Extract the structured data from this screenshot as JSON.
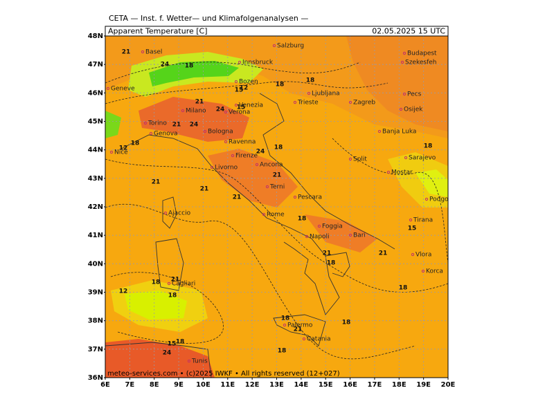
{
  "header": "CETA — Inst. f. Wetter— und Klimafolgenanalysen —",
  "title": "Apparent Temperature [C]",
  "timestamp": "02.05.2025 15 UTC",
  "footer": "meteo-services.com • (c)2025 IWKF • All rights reserved (12+027)",
  "lat_labels": [
    "48N",
    "47N",
    "46N",
    "45N",
    "44N",
    "43N",
    "42N",
    "41N",
    "40N",
    "39N",
    "38N",
    "37N",
    "36N"
  ],
  "lon_labels": [
    "6E",
    "7E",
    "8E",
    "9E",
    "10E",
    "11E",
    "12E",
    "13E",
    "14E",
    "15E",
    "16E",
    "17E",
    "18E",
    "19E",
    "20E"
  ],
  "cities": [
    "Basel",
    "Innsbruck",
    "Salzburg",
    "Budapest",
    "Szekesfeh",
    "Bozen",
    "Milano",
    "Verona",
    "Venezia",
    "Trieste",
    "Ljubljana",
    "Zagreb",
    "Pecs",
    "Osijek",
    "Torino",
    "Genova",
    "Bologna",
    "Ravenna",
    "Firenze",
    "Ancona",
    "Livorno",
    "Split",
    "Banja Luka",
    "Sarajevo",
    "Mostar",
    "Podgorica",
    "Tirana",
    "Vlora",
    "Korca",
    "Terni",
    "Pescara",
    "Rome",
    "Ajaccio",
    "Foggia",
    "Bari",
    "Napoli",
    "Cagliari",
    "Palermo",
    "Catania",
    "Tunis",
    "Nice",
    "Geneve"
  ],
  "contour_labels": [
    21,
    24,
    18,
    15,
    18,
    18,
    12,
    21,
    24,
    21,
    24,
    15,
    12,
    18,
    24,
    18,
    21,
    21,
    21,
    18,
    21,
    18,
    15,
    21,
    18,
    21,
    18,
    12,
    18,
    21,
    18,
    18,
    18,
    21,
    15,
    18,
    24,
    18
  ]
}
